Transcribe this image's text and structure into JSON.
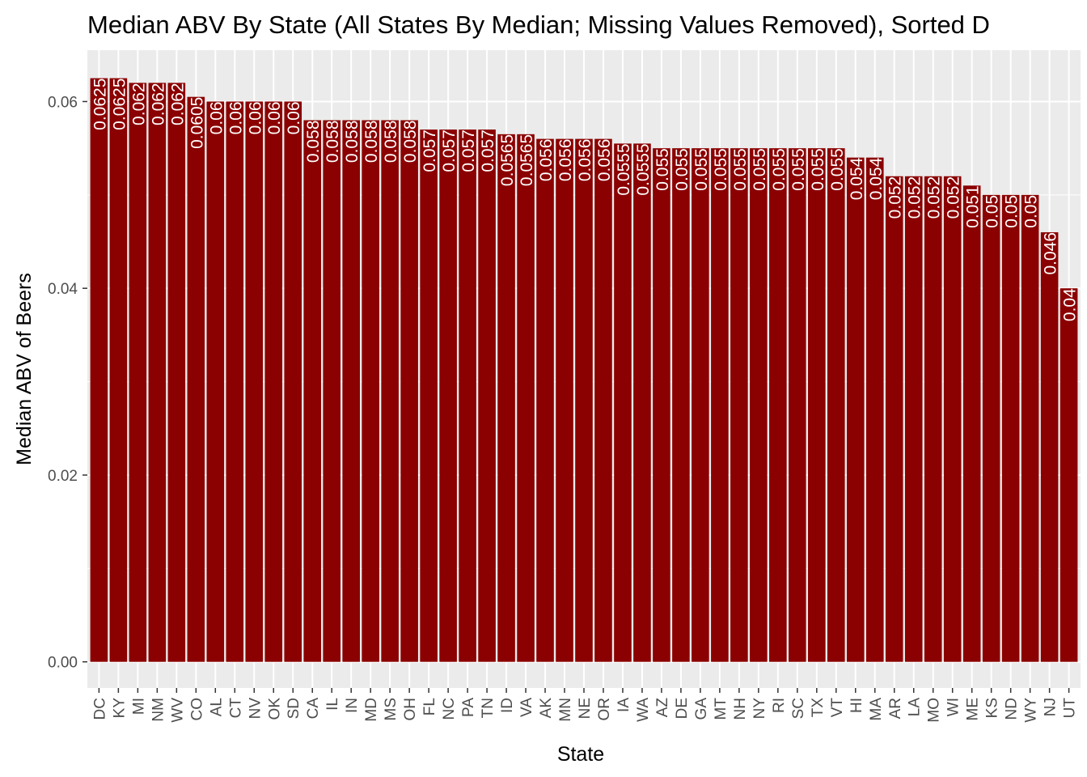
{
  "chart_data": {
    "type": "bar",
    "title": "Median ABV By State (All States By Median; Missing Values Removed), Sorted D",
    "xlabel": "State",
    "ylabel": "Median ABV of Beers",
    "ylim": [
      -0.0028,
      0.0655
    ],
    "yticks": [
      0.0,
      0.02,
      0.04,
      0.06
    ],
    "ytick_labels": [
      "0.00",
      "0.02",
      "0.04",
      "0.06"
    ],
    "grid": true,
    "bar_color": "#8b0000",
    "label_color": "#ffffff",
    "panel_background": "#ebebeb",
    "categories": [
      "DC",
      "KY",
      "MI",
      "NM",
      "WV",
      "CO",
      "AL",
      "CT",
      "NV",
      "OK",
      "SD",
      "CA",
      "IL",
      "IN",
      "MD",
      "MS",
      "OH",
      "FL",
      "NC",
      "PA",
      "TN",
      "ID",
      "VA",
      "AK",
      "MN",
      "NE",
      "OR",
      "IA",
      "WA",
      "AZ",
      "DE",
      "GA",
      "MT",
      "NH",
      "NY",
      "RI",
      "SC",
      "TX",
      "VT",
      "HI",
      "MA",
      "AR",
      "LA",
      "MO",
      "WI",
      "ME",
      "KS",
      "ND",
      "WY",
      "NJ",
      "UT"
    ],
    "values": [
      0.0625,
      0.0625,
      0.062,
      0.062,
      0.062,
      0.0605,
      0.06,
      0.06,
      0.06,
      0.06,
      0.06,
      0.058,
      0.058,
      0.058,
      0.058,
      0.058,
      0.058,
      0.057,
      0.057,
      0.057,
      0.057,
      0.0565,
      0.0565,
      0.056,
      0.056,
      0.056,
      0.056,
      0.0555,
      0.0555,
      0.055,
      0.055,
      0.055,
      0.055,
      0.055,
      0.055,
      0.055,
      0.055,
      0.055,
      0.055,
      0.054,
      0.054,
      0.052,
      0.052,
      0.052,
      0.052,
      0.051,
      0.05,
      0.05,
      0.05,
      0.046,
      0.04
    ],
    "value_labels": [
      "0.0625",
      "0.0625",
      "0.062",
      "0.062",
      "0.062",
      "0.0605",
      "0.06",
      "0.06",
      "0.06",
      "0.06",
      "0.06",
      "0.058",
      "0.058",
      "0.058",
      "0.058",
      "0.058",
      "0.058",
      "0.057",
      "0.057",
      "0.057",
      "0.057",
      "0.0565",
      "0.0565",
      "0.056",
      "0.056",
      "0.056",
      "0.056",
      "0.0555",
      "0.0555",
      "0.055",
      "0.055",
      "0.055",
      "0.055",
      "0.055",
      "0.055",
      "0.055",
      "0.055",
      "0.055",
      "0.055",
      "0.054",
      "0.054",
      "0.052",
      "0.052",
      "0.052",
      "0.052",
      "0.051",
      "0.05",
      "0.05",
      "0.05",
      "0.046",
      "0.04"
    ]
  }
}
